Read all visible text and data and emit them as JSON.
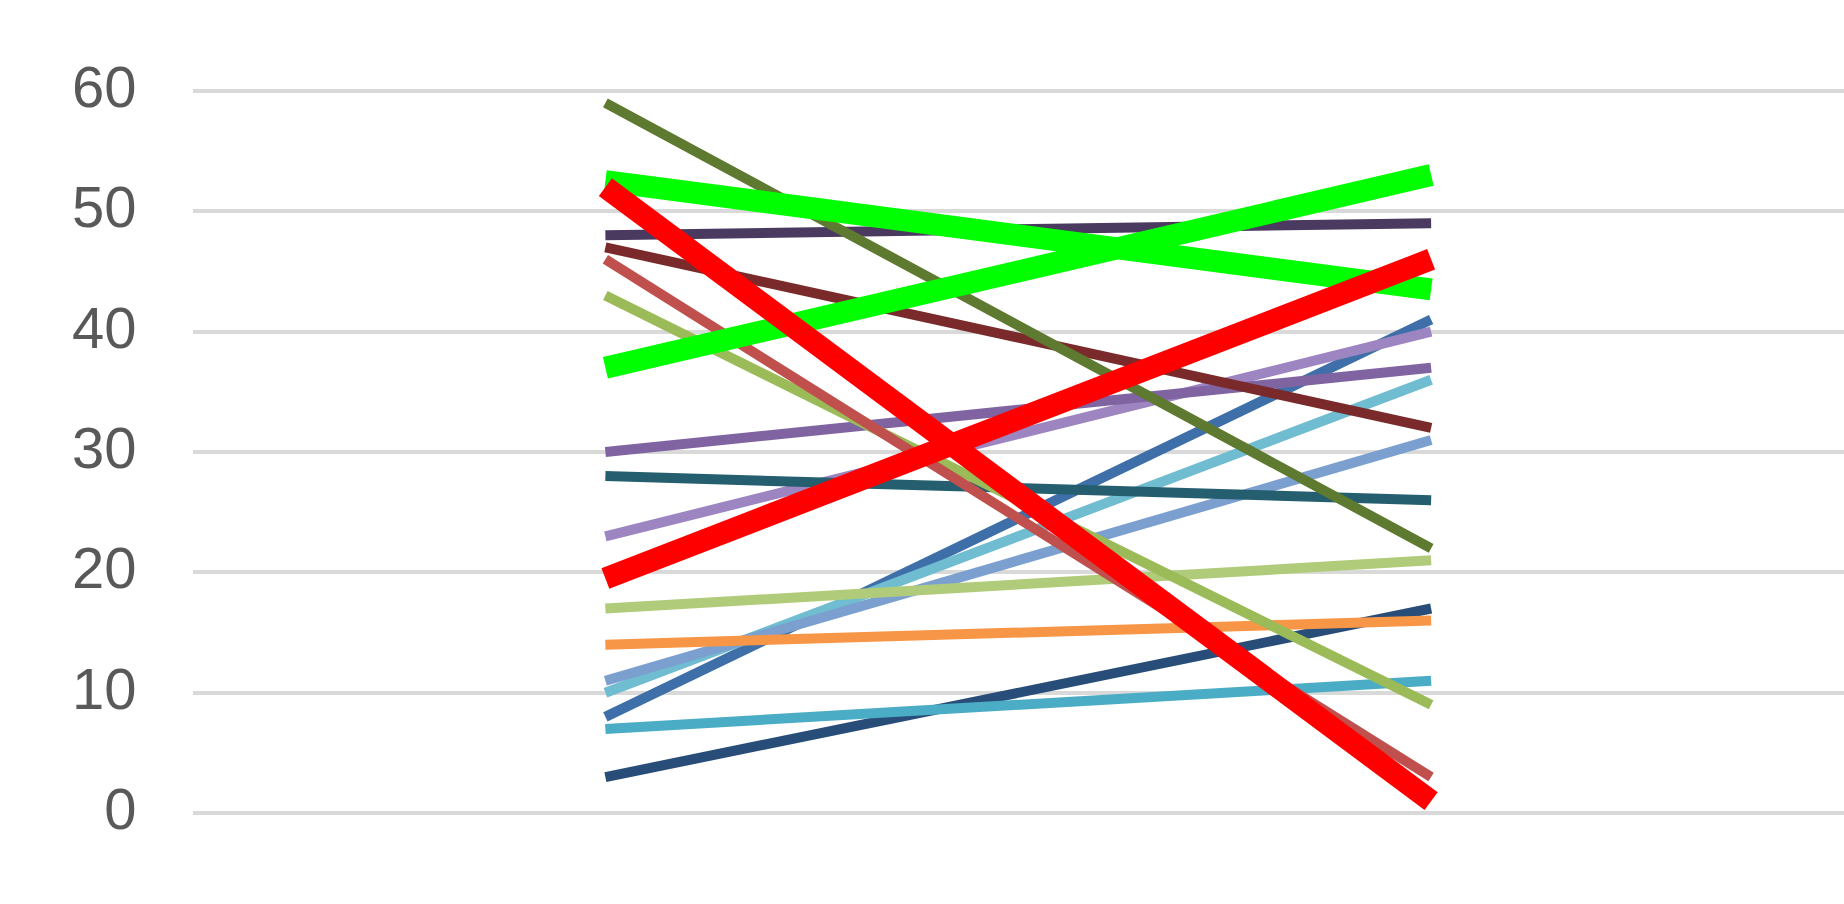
{
  "chart_data": {
    "type": "line",
    "categories": [
      null,
      null
    ],
    "series": [
      {
        "color": "#ff0000",
        "values": [
          52,
          1
        ]
      },
      {
        "color": "#ff0000",
        "values": [
          19.5,
          46
        ]
      },
      {
        "color": "#00ff00",
        "values": [
          52.5,
          43.5
        ]
      },
      {
        "color": "#00ff00",
        "values": [
          37,
          53
        ]
      },
      {
        "color": "#5e7a30",
        "values": [
          59,
          22
        ]
      },
      {
        "color": "#4b3a60",
        "values": [
          48,
          49
        ]
      },
      {
        "color": "#7a2a2a",
        "values": [
          47,
          32
        ]
      },
      {
        "color": "#c0504d",
        "values": [
          46,
          3
        ]
      },
      {
        "color": "#9bbb59",
        "values": [
          43,
          9
        ]
      },
      {
        "color": "#8064a2",
        "values": [
          30,
          37
        ]
      },
      {
        "color": "#255e6e",
        "values": [
          28,
          26
        ]
      },
      {
        "color": "#9c85c0",
        "values": [
          23,
          40
        ]
      },
      {
        "color": "#b0cc7a",
        "values": [
          17,
          21
        ]
      },
      {
        "color": "#f79646",
        "values": [
          14,
          16
        ]
      },
      {
        "color": "#7ba0d0",
        "values": [
          11,
          31
        ]
      },
      {
        "color": "#70bcd0",
        "values": [
          10,
          36
        ]
      },
      {
        "color": "#3f6fa8",
        "values": [
          8,
          41
        ]
      },
      {
        "color": "#4bacc6",
        "values": [
          7,
          11
        ]
      },
      {
        "color": "#284d78",
        "values": [
          3,
          17
        ]
      }
    ],
    "ylim": [
      0,
      60
    ],
    "yticks": [
      0,
      10,
      20,
      30,
      40,
      50,
      60
    ],
    "grid": "y",
    "legend": false,
    "marker": "none",
    "line_style": "solid",
    "tick_labels": "y"
  }
}
